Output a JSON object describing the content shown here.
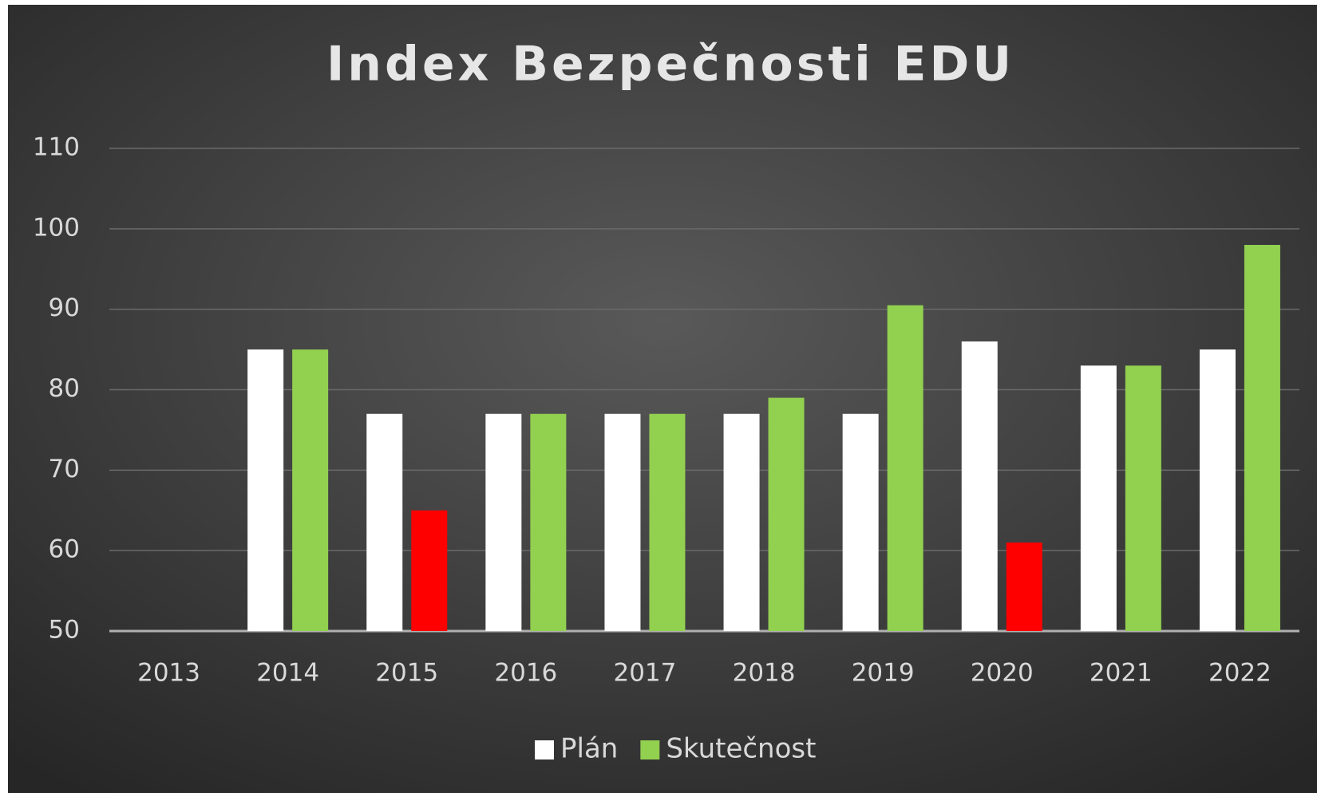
{
  "chart_data": {
    "type": "bar",
    "title": "Index Bezpečnosti EDU",
    "categories": [
      "2013",
      "2014",
      "2015",
      "2016",
      "2017",
      "2018",
      "2019",
      "2020",
      "2021",
      "2022"
    ],
    "series": [
      {
        "name": "Plán",
        "color": "#ffffff",
        "values": [
          null,
          85,
          77,
          77,
          77,
          77,
          77,
          86,
          83,
          85
        ]
      },
      {
        "name": "Skutečnost",
        "color": "#92d050",
        "point_colors": [
          "#92d050",
          "#92d050",
          "#ff0000",
          "#92d050",
          "#92d050",
          "#92d050",
          "#92d050",
          "#ff0000",
          "#92d050",
          "#92d050"
        ],
        "values": [
          null,
          85,
          65,
          77,
          77,
          79,
          90.5,
          61,
          83,
          98
        ]
      }
    ],
    "ylim": [
      50,
      110
    ],
    "yticks": [
      50,
      60,
      70,
      80,
      90,
      100,
      110
    ],
    "grid": true,
    "legend": "bottom"
  }
}
